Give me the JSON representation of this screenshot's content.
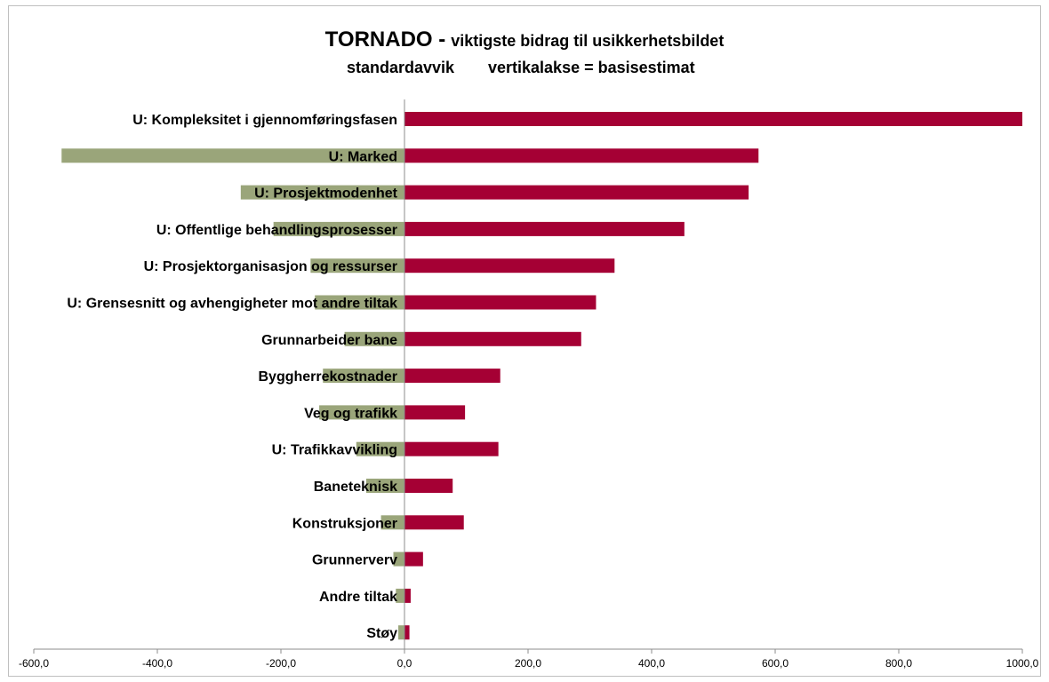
{
  "chart_data": {
    "type": "bar",
    "orientation": "horizontal",
    "title": "TORNADO -",
    "title_suffix": "viktigste bidrag til usikkerhetsbildet",
    "subtitle_left": "standardavvik",
    "subtitle_right": "vertikalakse = basisestimat",
    "categories": [
      "U: Kompleksitet i gjennomføringsfasen",
      "U: Marked",
      "U: Prosjektmodenhet",
      "U: Offentlige behandlingsprosesser",
      "U: Prosjektorganisasjon og ressurser",
      "U: Grensesnitt og avhengigheter mot andre tiltak",
      "Grunnarbeider bane",
      "Byggherrekostnader",
      "Veg og trafikk",
      "U: Trafikkavvikling",
      "Baneteknisk",
      "Konstruksjoner",
      "Grunnerverv",
      "Andre tiltak",
      "Støy"
    ],
    "series": [
      {
        "color": "#9aa57a",
        "values": [
          0,
          -555,
          -265,
          -212,
          -152,
          -145,
          -97,
          -132,
          -138,
          -78,
          -62,
          -38,
          -18,
          -14,
          -10
        ]
      },
      {
        "color": "#a50034",
        "values": [
          1000,
          573,
          557,
          453,
          340,
          310,
          286,
          155,
          98,
          152,
          78,
          96,
          30,
          10,
          8
        ]
      }
    ],
    "xlim": [
      -600,
      1000
    ],
    "xticks": [
      -600,
      -400,
      -200,
      0,
      200,
      400,
      600,
      800,
      1000
    ],
    "xtick_labels": [
      "-600,0",
      "-400,0",
      "-200,0",
      "0,0",
      "200,0",
      "400,0",
      "600,0",
      "800,0",
      "1000,0"
    ],
    "grid": false,
    "legend": "none"
  }
}
